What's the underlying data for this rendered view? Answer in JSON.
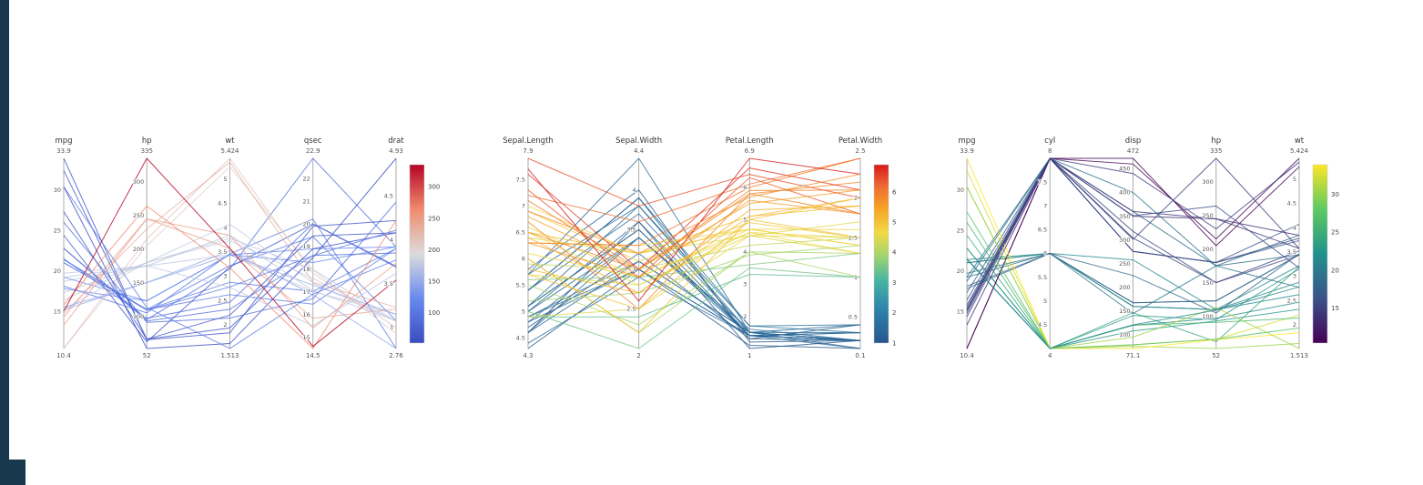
{
  "page": {
    "background": "#ffffff",
    "edge_strip_color": "#17384e"
  },
  "chart_data": [
    {
      "type": "parallel-coordinates",
      "name": "mtcars-colored-by-hp",
      "color_axis": 1,
      "axes": [
        {
          "label": "mpg",
          "min": 10.4,
          "max": 33.9,
          "max_label": "33.9",
          "min_label": "10.4",
          "ticks": [
            15,
            20,
            25,
            30
          ]
        },
        {
          "label": "hp",
          "min": 52,
          "max": 335,
          "max_label": "335",
          "min_label": "52",
          "ticks": [
            100,
            150,
            200,
            250,
            300
          ]
        },
        {
          "label": "wt",
          "min": 1.513,
          "max": 5.424,
          "max_label": "5.424",
          "min_label": "1.513",
          "ticks": [
            2,
            2.5,
            3,
            3.5,
            4,
            4.5,
            5
          ]
        },
        {
          "label": "qsec",
          "min": 14.5,
          "max": 22.9,
          "max_label": "22.9",
          "min_label": "14.5",
          "ticks": [
            15,
            16,
            17,
            18,
            19,
            20,
            21,
            22
          ]
        },
        {
          "label": "drat",
          "min": 2.76,
          "max": 4.93,
          "max_label": "4.93",
          "min_label": "2.76",
          "ticks": [
            3,
            3.5,
            4,
            4.5
          ]
        }
      ],
      "colorbar": {
        "ticks": [
          100,
          150,
          200,
          250,
          300
        ],
        "stops": [
          [
            0,
            "#3a4cc0"
          ],
          [
            0.25,
            "#688aef"
          ],
          [
            0.5,
            "#dcdcdc"
          ],
          [
            0.75,
            "#f08b6e"
          ],
          [
            1,
            "#b40426"
          ]
        ]
      },
      "rows": [
        [
          21,
          110,
          2.62,
          16.46,
          3.9
        ],
        [
          21,
          110,
          2.875,
          17.02,
          3.9
        ],
        [
          22.8,
          93,
          2.32,
          18.61,
          3.85
        ],
        [
          21.4,
          110,
          3.215,
          19.44,
          3.08
        ],
        [
          18.7,
          175,
          3.44,
          17.02,
          3.15
        ],
        [
          18.1,
          105,
          3.46,
          20.22,
          2.76
        ],
        [
          14.3,
          245,
          3.57,
          15.84,
          3.21
        ],
        [
          24.4,
          62,
          3.19,
          20,
          3.69
        ],
        [
          22.8,
          95,
          3.15,
          22.9,
          3.92
        ],
        [
          19.2,
          123,
          3.44,
          18.3,
          3.92
        ],
        [
          17.8,
          123,
          3.44,
          18.9,
          3.92
        ],
        [
          16.4,
          180,
          4.07,
          17.4,
          3.07
        ],
        [
          17.3,
          180,
          3.73,
          17.6,
          3.07
        ],
        [
          15.2,
          180,
          3.78,
          18,
          3.07
        ],
        [
          10.4,
          205,
          5.25,
          17.98,
          2.93
        ],
        [
          10.4,
          215,
          5.424,
          17.82,
          3
        ],
        [
          14.7,
          230,
          5.345,
          17.42,
          3.23
        ],
        [
          32.4,
          66,
          2.2,
          19.47,
          4.08
        ],
        [
          30.4,
          52,
          1.615,
          18.52,
          4.93
        ],
        [
          33.9,
          65,
          1.835,
          19.9,
          4.22
        ],
        [
          21.5,
          97,
          2.465,
          20.01,
          3.7
        ],
        [
          15.5,
          150,
          3.52,
          16.87,
          2.76
        ],
        [
          15.2,
          150,
          3.435,
          17.3,
          3.15
        ],
        [
          13.3,
          245,
          3.84,
          15.41,
          3.73
        ],
        [
          19.2,
          175,
          3.845,
          17.05,
          3.08
        ],
        [
          27.3,
          66,
          1.935,
          18.9,
          4.08
        ],
        [
          26,
          91,
          2.14,
          16.7,
          4.43
        ],
        [
          30.4,
          113,
          1.513,
          16.9,
          3.77
        ],
        [
          15.8,
          264,
          3.17,
          14.5,
          4.22
        ],
        [
          19.7,
          175,
          2.77,
          15.5,
          3.62
        ],
        [
          15,
          335,
          3.57,
          14.6,
          3.54
        ],
        [
          21.4,
          109,
          2.78,
          18.6,
          4.11
        ]
      ]
    },
    {
      "type": "parallel-coordinates",
      "name": "iris-colored-by-petal-length",
      "color_axis": 2,
      "axes": [
        {
          "label": "Sepal.Length",
          "min": 4.3,
          "max": 7.9,
          "max_label": "7.9",
          "min_label": "4.3",
          "ticks": [
            4.5,
            5,
            5.5,
            6,
            6.5,
            7,
            7.5
          ]
        },
        {
          "label": "Sepal.Width",
          "min": 2,
          "max": 4.4,
          "max_label": "4.4",
          "min_label": "2",
          "ticks": [
            2.5,
            3,
            3.5,
            4
          ]
        },
        {
          "label": "Petal.Length",
          "min": 1,
          "max": 6.9,
          "max_label": "6.9",
          "min_label": "1",
          "ticks": [
            2,
            3,
            4,
            5,
            6
          ]
        },
        {
          "label": "Petal.Width",
          "min": 0.1,
          "max": 2.5,
          "max_label": "2.5",
          "min_label": "0.1",
          "ticks": [
            0.5,
            1,
            1.5,
            2
          ]
        }
      ],
      "colorbar": {
        "ticks": [
          1,
          2,
          3,
          4,
          5,
          6
        ],
        "stops": [
          [
            0,
            "#27568c"
          ],
          [
            0.2,
            "#2e86ab"
          ],
          [
            0.35,
            "#46b5a2"
          ],
          [
            0.5,
            "#a8d66b"
          ],
          [
            0.62,
            "#f2d944"
          ],
          [
            0.75,
            "#f5a623"
          ],
          [
            0.88,
            "#ef6a32"
          ],
          [
            1,
            "#d7191c"
          ]
        ]
      },
      "rows": [
        [
          5.1,
          3.5,
          1.4,
          0.2
        ],
        [
          4.9,
          3,
          1.4,
          0.2
        ],
        [
          4.7,
          3.2,
          1.3,
          0.2
        ],
        [
          4.6,
          3.1,
          1.5,
          0.2
        ],
        [
          5,
          3.6,
          1.4,
          0.2
        ],
        [
          5.4,
          3.9,
          1.7,
          0.4
        ],
        [
          4.6,
          3.4,
          1.4,
          0.3
        ],
        [
          5,
          3.4,
          1.5,
          0.2
        ],
        [
          4.4,
          2.9,
          1.4,
          0.2
        ],
        [
          4.9,
          3.1,
          1.5,
          0.1
        ],
        [
          5.4,
          3.7,
          1.5,
          0.2
        ],
        [
          4.8,
          3.4,
          1.6,
          0.2
        ],
        [
          4.8,
          3,
          1.4,
          0.1
        ],
        [
          4.3,
          3,
          1.1,
          0.1
        ],
        [
          5.8,
          4,
          1.2,
          0.2
        ],
        [
          5.7,
          4.4,
          1.5,
          0.4
        ],
        [
          5.4,
          3.9,
          1.3,
          0.4
        ],
        [
          5.1,
          3.5,
          1.4,
          0.3
        ],
        [
          5.7,
          3.8,
          1.7,
          0.3
        ],
        [
          5.1,
          3.8,
          1.5,
          0.3
        ],
        [
          4.6,
          3.6,
          1,
          0.2
        ],
        [
          7,
          3.2,
          4.7,
          1.4
        ],
        [
          6.4,
          3.2,
          4.5,
          1.5
        ],
        [
          6.9,
          3.1,
          4.9,
          1.5
        ],
        [
          5.5,
          2.3,
          4,
          1.3
        ],
        [
          6.5,
          2.8,
          4.6,
          1.5
        ],
        [
          5.7,
          2.8,
          4.5,
          1.3
        ],
        [
          6.3,
          3.3,
          4.7,
          1.6
        ],
        [
          4.9,
          2.4,
          3.3,
          1
        ],
        [
          6.6,
          2.9,
          4.6,
          1.3
        ],
        [
          5.2,
          2.7,
          3.9,
          1.4
        ],
        [
          5,
          2,
          3.5,
          1
        ],
        [
          5.9,
          3,
          4.2,
          1.5
        ],
        [
          6,
          2.2,
          4,
          1
        ],
        [
          6.1,
          2.9,
          4.7,
          1.4
        ],
        [
          5.6,
          2.9,
          3.6,
          1.3
        ],
        [
          6.3,
          3.3,
          6,
          2.5
        ],
        [
          5.8,
          2.7,
          5.1,
          1.9
        ],
        [
          7.1,
          3,
          5.9,
          2.1
        ],
        [
          6.3,
          2.9,
          5.6,
          1.8
        ],
        [
          6.5,
          3,
          5.8,
          2.2
        ],
        [
          7.6,
          3,
          6.6,
          2.1
        ],
        [
          4.9,
          2.5,
          4.5,
          1.7
        ],
        [
          7.3,
          2.9,
          6.3,
          1.8
        ],
        [
          6.7,
          2.5,
          5.8,
          1.8
        ],
        [
          7.2,
          3.6,
          6.1,
          2.5
        ],
        [
          6.5,
          3.2,
          5.1,
          2
        ],
        [
          6.4,
          2.7,
          5.3,
          1.9
        ],
        [
          6.8,
          3,
          5.5,
          2.1
        ],
        [
          5.7,
          2.5,
          5,
          2
        ],
        [
          7.9,
          3.8,
          6.4,
          2
        ],
        [
          7.7,
          2.6,
          6.9,
          2.3
        ],
        [
          6,
          2.2,
          5,
          1.5
        ],
        [
          6.9,
          3.2,
          5.7,
          2.3
        ]
      ]
    },
    {
      "type": "parallel-coordinates",
      "name": "mtcars-colored-by-mpg",
      "color_axis": 0,
      "axes": [
        {
          "label": "mpg",
          "min": 10.4,
          "max": 33.9,
          "max_label": "33.9",
          "min_label": "10.4",
          "ticks": [
            15,
            20,
            25,
            30
          ]
        },
        {
          "label": "cyl",
          "min": 4,
          "max": 8,
          "max_label": "8",
          "min_label": "4",
          "ticks": [
            4.5,
            5,
            5.5,
            6,
            6.5,
            7,
            7.5
          ]
        },
        {
          "label": "disp",
          "min": 71.1,
          "max": 472,
          "max_label": "472",
          "min_label": "71.1",
          "ticks": [
            100,
            150,
            200,
            250,
            300,
            350,
            400,
            450
          ]
        },
        {
          "label": "hp",
          "min": 52,
          "max": 335,
          "max_label": "335",
          "min_label": "52",
          "ticks": [
            100,
            150,
            200,
            250,
            300
          ]
        },
        {
          "label": "wt",
          "min": 1.513,
          "max": 5.424,
          "max_label": "5.424",
          "min_label": "1.513",
          "ticks": [
            2,
            2.5,
            3,
            3.5,
            4,
            4.5,
            5
          ]
        }
      ],
      "colorbar": {
        "ticks": [
          15,
          20,
          25,
          30
        ],
        "stops": [
          [
            0,
            "#440154"
          ],
          [
            0.25,
            "#3b528b"
          ],
          [
            0.5,
            "#21918c"
          ],
          [
            0.75,
            "#5ec962"
          ],
          [
            1,
            "#fde725"
          ]
        ]
      },
      "rows": [
        [
          21,
          6,
          160,
          110,
          2.62
        ],
        [
          21,
          6,
          160,
          110,
          2.875
        ],
        [
          22.8,
          4,
          108,
          93,
          2.32
        ],
        [
          21.4,
          6,
          258,
          110,
          3.215
        ],
        [
          18.7,
          8,
          360,
          175,
          3.44
        ],
        [
          18.1,
          6,
          225,
          105,
          3.46
        ],
        [
          14.3,
          8,
          360,
          245,
          3.57
        ],
        [
          24.4,
          4,
          146.7,
          62,
          3.19
        ],
        [
          22.8,
          4,
          140.8,
          95,
          3.15
        ],
        [
          19.2,
          6,
          167.6,
          123,
          3.44
        ],
        [
          17.8,
          6,
          167.6,
          123,
          3.44
        ],
        [
          16.4,
          8,
          275.8,
          180,
          4.07
        ],
        [
          17.3,
          8,
          275.8,
          180,
          3.73
        ],
        [
          15.2,
          8,
          275.8,
          180,
          3.78
        ],
        [
          10.4,
          8,
          472,
          205,
          5.25
        ],
        [
          10.4,
          8,
          460,
          215,
          5.424
        ],
        [
          14.7,
          8,
          440,
          230,
          5.345
        ],
        [
          32.4,
          4,
          78.7,
          66,
          2.2
        ],
        [
          30.4,
          4,
          75.7,
          52,
          1.615
        ],
        [
          33.9,
          4,
          71.1,
          65,
          1.835
        ],
        [
          21.5,
          4,
          120.1,
          97,
          2.465
        ],
        [
          15.5,
          8,
          318,
          150,
          3.52
        ],
        [
          15.2,
          8,
          304,
          150,
          3.435
        ],
        [
          13.3,
          8,
          350,
          245,
          3.84
        ],
        [
          19.2,
          8,
          400,
          175,
          3.845
        ],
        [
          27.3,
          4,
          79,
          66,
          1.935
        ],
        [
          26,
          4,
          120.3,
          91,
          2.14
        ],
        [
          30.4,
          4,
          95.1,
          113,
          1.513
        ],
        [
          15.8,
          8,
          351,
          264,
          3.17
        ],
        [
          19.7,
          6,
          145,
          175,
          2.77
        ],
        [
          15,
          8,
          301,
          335,
          3.57
        ],
        [
          21.4,
          4,
          121,
          109,
          2.78
        ]
      ]
    }
  ]
}
